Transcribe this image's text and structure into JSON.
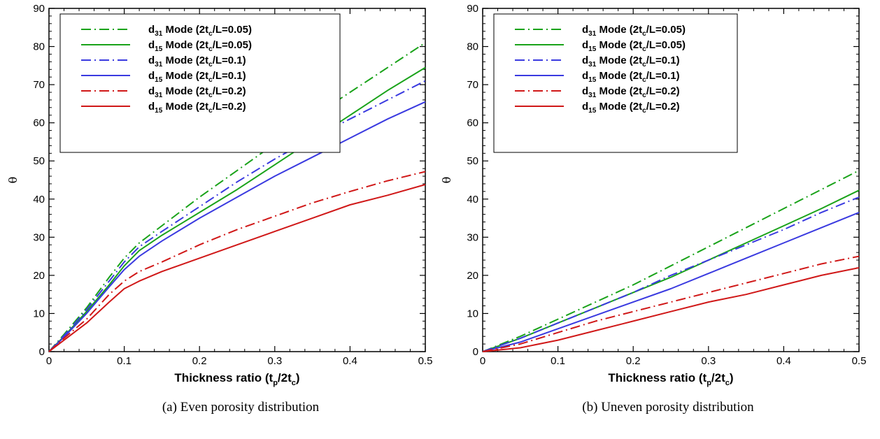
{
  "captions": [
    "(a) Even porosity distribution",
    "(b) Uneven porosity distribution"
  ],
  "series_style": [
    {
      "sub": "31",
      "label": " Mode (2t",
      "ratio": "/L=0.05)",
      "color": "#1aa31a",
      "dash": "dashdot"
    },
    {
      "sub": "15",
      "label": " Mode (2t",
      "ratio": "/L=0.05)",
      "color": "#1aa31a",
      "dash": "solid"
    },
    {
      "sub": "31",
      "label": " Mode (2t",
      "ratio": "/L=0.1)",
      "color": "#3a3ae0",
      "dash": "dashdot"
    },
    {
      "sub": "15",
      "label": " Mode (2t",
      "ratio": "/L=0.1)",
      "color": "#3a3ae0",
      "dash": "solid"
    },
    {
      "sub": "31",
      "label": " Mode (2t",
      "ratio": "/L=0.2)",
      "color": "#d01818",
      "dash": "dashdot"
    },
    {
      "sub": "15",
      "label": " Mode (2t",
      "ratio": "/L=0.2)",
      "color": "#d01818",
      "dash": "solid"
    }
  ],
  "chart_data": [
    {
      "type": "line",
      "xlabel": "Thickness ratio (t",
      "xlabel_sub1": "p",
      "xlabel_mid": "/2t",
      "xlabel_sub2": "c",
      "xlabel_end": ")",
      "ylabel": "θ",
      "xlim": [
        0,
        0.5
      ],
      "ylim": [
        0,
        90
      ],
      "xticks": [
        0,
        0.1,
        0.2,
        0.3,
        0.4,
        0.5
      ],
      "xtick_labels": [
        "0",
        "0.1",
        "0.2",
        "0.3",
        "0.4",
        "0.5"
      ],
      "yticks": [
        0,
        10,
        20,
        30,
        40,
        50,
        60,
        70,
        80,
        90
      ],
      "ytick_labels": [
        "0",
        "10",
        "20",
        "30",
        "40",
        "50",
        "60",
        "70",
        "80",
        "90"
      ],
      "legend_position": "top-left",
      "x": [
        0,
        0.02,
        0.05,
        0.08,
        0.1,
        0.12,
        0.15,
        0.2,
        0.25,
        0.3,
        0.35,
        0.4,
        0.45,
        0.5
      ],
      "series": [
        {
          "name": "d31 Mode (2tc/L=0.05)",
          "values": [
            0,
            4.5,
            11.5,
            19.5,
            24.5,
            28.5,
            33,
            40.5,
            47.5,
            54.5,
            61.5,
            68,
            74.5,
            81
          ]
        },
        {
          "name": "d15 Mode (2tc/L=0.05)",
          "values": [
            0,
            4,
            10.5,
            17.5,
            22.5,
            26.5,
            30.5,
            36.5,
            42.5,
            49,
            55.5,
            62,
            68.5,
            74.5
          ]
        },
        {
          "name": "d31 Mode (2tc/L=0.1)",
          "values": [
            0,
            4.2,
            11,
            18.5,
            23.5,
            27.5,
            31.5,
            38,
            44.5,
            50.5,
            56,
            61,
            66,
            71
          ]
        },
        {
          "name": "d15 Mode (2tc/L=0.1)",
          "values": [
            0,
            3.8,
            10,
            17,
            21.5,
            25,
            29,
            35,
            40.5,
            46,
            51,
            56,
            61,
            65.5
          ]
        },
        {
          "name": "d31 Mode (2tc/L=0.2)",
          "values": [
            0,
            3.5,
            8.5,
            15,
            18.5,
            21,
            23.5,
            28,
            32,
            35.5,
            39,
            42,
            44.8,
            47.2
          ]
        },
        {
          "name": "d15 Mode (2tc/L=0.2)",
          "values": [
            0,
            3,
            7.5,
            13,
            16.5,
            18.5,
            21,
            24.5,
            28,
            31.5,
            35,
            38.5,
            41,
            43.8
          ]
        }
      ]
    },
    {
      "type": "line",
      "xlabel": "Thickness ratio (t",
      "xlabel_sub1": "p",
      "xlabel_mid": "/2t",
      "xlabel_sub2": "c",
      "xlabel_end": ")",
      "ylabel": "θ",
      "xlim": [
        0,
        0.5
      ],
      "ylim": [
        0,
        90
      ],
      "xticks": [
        0,
        0.1,
        0.2,
        0.3,
        0.4,
        0.5
      ],
      "xtick_labels": [
        "0",
        "0.1",
        "0.2",
        "0.3",
        "0.4",
        "0.5"
      ],
      "yticks": [
        0,
        10,
        20,
        30,
        40,
        50,
        60,
        70,
        80,
        90
      ],
      "ytick_labels": [
        "0",
        "10",
        "20",
        "30",
        "40",
        "50",
        "60",
        "70",
        "80",
        "90"
      ],
      "legend_position": "top-left",
      "x": [
        0,
        0.05,
        0.1,
        0.15,
        0.2,
        0.25,
        0.3,
        0.35,
        0.4,
        0.45,
        0.5
      ],
      "series": [
        {
          "name": "d31 Mode (2tc/L=0.05)",
          "values": [
            0,
            4,
            8.5,
            13,
            17.5,
            22.5,
            27.5,
            32.5,
            37.5,
            42.5,
            47.5
          ]
        },
        {
          "name": "d15 Mode (2tc/L=0.05)",
          "values": [
            0,
            3.5,
            7.5,
            11.5,
            15.5,
            19.5,
            24,
            28.5,
            33,
            37.5,
            42.3
          ]
        },
        {
          "name": "d31 Mode (2tc/L=0.1)",
          "values": [
            0,
            3.5,
            7.5,
            11.5,
            15.5,
            20,
            24,
            28,
            32,
            36.5,
            40.5
          ]
        },
        {
          "name": "d15 Mode (2tc/L=0.1)",
          "values": [
            0,
            2.5,
            6,
            9.5,
            13,
            16.5,
            20.5,
            24.5,
            28.5,
            32.5,
            36.5
          ]
        },
        {
          "name": "d31 Mode (2tc/L=0.2)",
          "values": [
            0,
            2,
            5,
            8,
            10.5,
            13,
            15.5,
            18,
            20.5,
            23,
            25
          ]
        },
        {
          "name": "d15 Mode (2tc/L=0.2)",
          "values": [
            0,
            1,
            3,
            5.5,
            8,
            10.5,
            13,
            15,
            17.5,
            20,
            22
          ]
        }
      ]
    }
  ]
}
